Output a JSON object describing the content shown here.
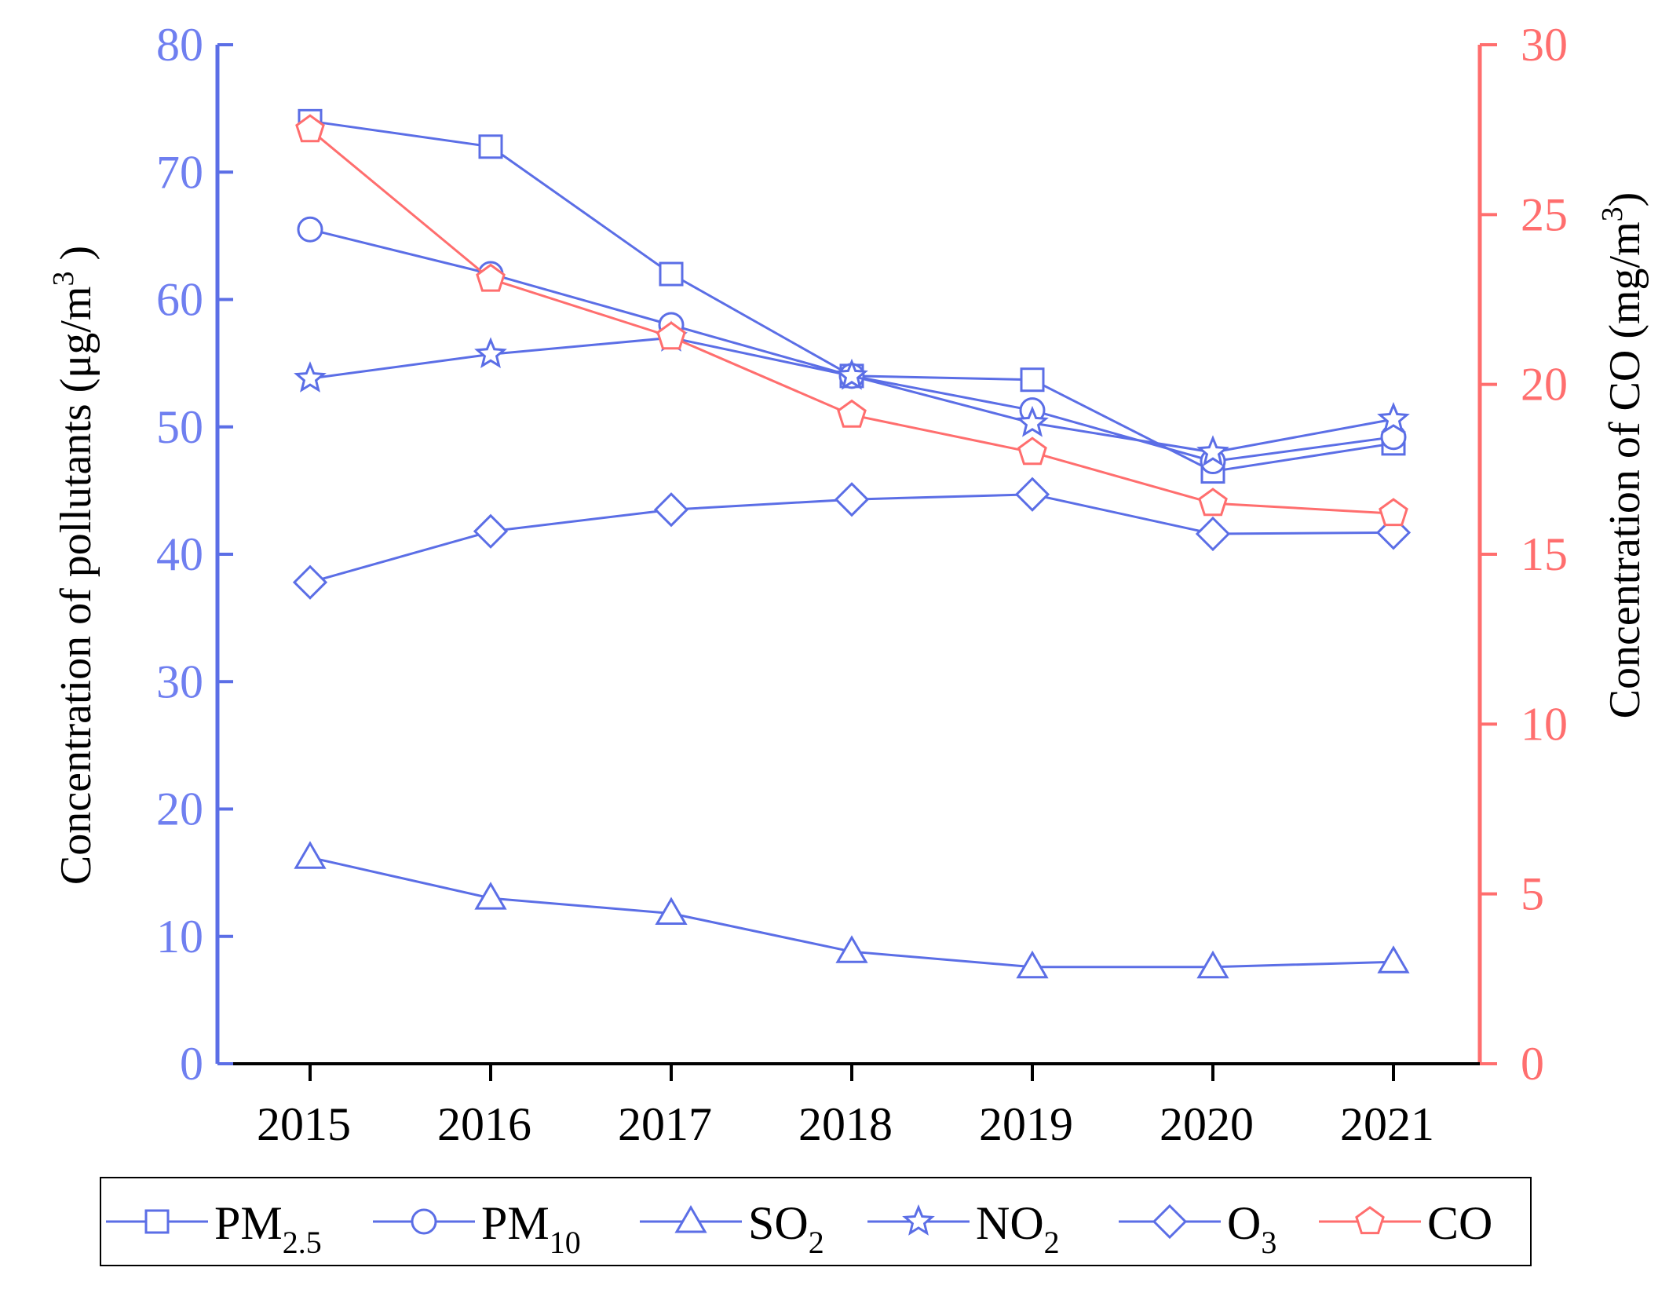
{
  "chart_data": {
    "type": "line",
    "categories": [
      "2015",
      "2016",
      "2017",
      "2018",
      "2019",
      "2020",
      "2021"
    ],
    "y_left": {
      "label_main": "Concentration of pollutants (μg/m",
      "label_sup": "3",
      "label_close": " )",
      "range": [
        0,
        80
      ],
      "ticks": [
        "0",
        "10",
        "20",
        "30",
        "40",
        "50",
        "60",
        "70",
        "80"
      ],
      "color": "#6f7ff0"
    },
    "y_right": {
      "label_main": "Concentration of CO (mg/m",
      "label_sup": "3",
      "label_close": ")",
      "range": [
        0,
        30
      ],
      "ticks": [
        "0",
        "5",
        "10",
        "15",
        "20",
        "25",
        "30"
      ],
      "color": "#ff6e6e"
    },
    "series": [
      {
        "id": "pm25",
        "name": "PM",
        "sub": "2.5",
        "marker": "square",
        "axis": "left",
        "color": "#5b6ee6",
        "values": [
          74,
          72,
          62,
          54,
          53.7,
          46.5,
          48.7
        ]
      },
      {
        "id": "pm10",
        "name": "PM",
        "sub": "10",
        "marker": "circle",
        "axis": "left",
        "color": "#5b6ee6",
        "values": [
          65.5,
          62,
          58,
          54,
          51.3,
          47.3,
          49.2
        ]
      },
      {
        "id": "so2",
        "name": "SO",
        "sub": "2",
        "marker": "triangle",
        "axis": "left",
        "color": "#5b6ee6",
        "values": [
          16.2,
          13,
          11.8,
          8.8,
          7.6,
          7.6,
          8
        ]
      },
      {
        "id": "no2",
        "name": "NO",
        "sub": "2",
        "marker": "star",
        "axis": "left",
        "color": "#5b6ee6",
        "values": [
          53.8,
          55.7,
          57,
          54,
          50.3,
          48,
          50.6
        ]
      },
      {
        "id": "o3",
        "name": "O",
        "sub": "3",
        "marker": "diamond",
        "axis": "left",
        "color": "#5b6ee6",
        "values": [
          37.8,
          41.8,
          43.5,
          44.3,
          44.7,
          41.6,
          41.7
        ]
      },
      {
        "id": "co",
        "name": "CO",
        "sub": "",
        "marker": "pentagon",
        "axis": "right",
        "color": "#ff6e6e",
        "values": [
          27.5,
          23.1,
          21.4,
          19.1,
          18,
          16.5,
          16.2
        ]
      }
    ]
  }
}
